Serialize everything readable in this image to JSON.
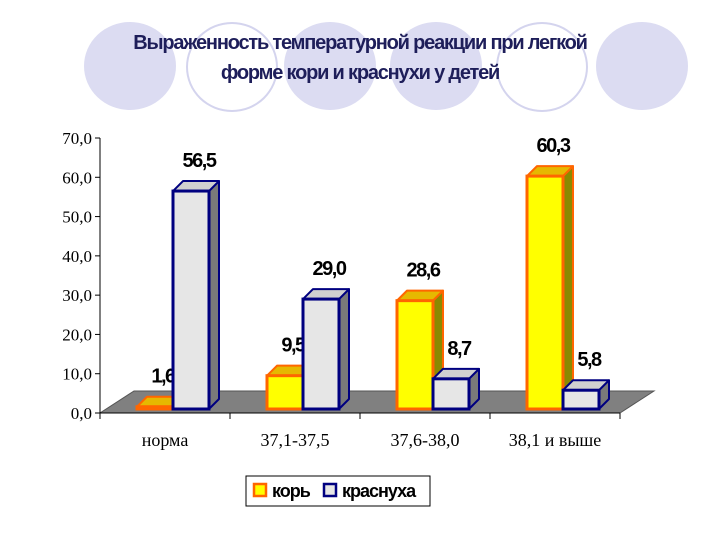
{
  "chart_data": {
    "type": "bar",
    "title_lines": [
      "Выраженность температурной реакции при легкой",
      "форме кори и краснухи у детей"
    ],
    "categories": [
      "норма",
      "37,1-37,5",
      "37,6-38,0",
      "38,1 и выше"
    ],
    "series": [
      {
        "name": "корь",
        "values": [
          1.6,
          9.5,
          28.6,
          60.3
        ],
        "value_labels": [
          "1,6",
          "9,5",
          "28,6",
          "60,3"
        ],
        "fill": "#ffff00",
        "stroke": "#ff6600",
        "side": "#8a8a00",
        "top": "#e6b800"
      },
      {
        "name": "краснуха",
        "values": [
          56.5,
          29.0,
          8.7,
          5.8
        ],
        "value_labels": [
          "56,5",
          "29,0",
          "8,7",
          "5,8"
        ],
        "fill": "#e6e6e6",
        "stroke": "#000080",
        "side": "#7a7a7a",
        "top": "#d0d0d0"
      }
    ],
    "y_ticks": [
      "0,0",
      "10,0",
      "20,0",
      "30,0",
      "40,0",
      "50,0",
      "60,0",
      "70,0"
    ],
    "ylim": [
      0,
      70
    ],
    "grid": false,
    "legend_position": "bottom",
    "floor_color": "#808080"
  }
}
